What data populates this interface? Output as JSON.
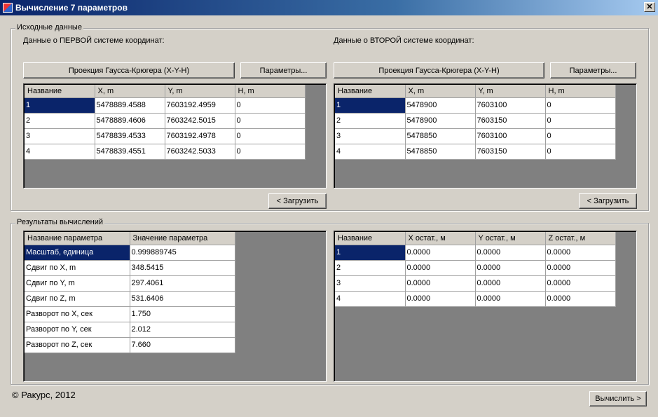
{
  "window": {
    "title": "Вычисление 7 параметров",
    "close": "✕"
  },
  "source": {
    "group_label": "Исходные данные",
    "first": {
      "label": "Данные о ПЕРВОЙ системе координат:",
      "projection_button": "Проекция Гаусса-Крюгера (X-Y-H)",
      "params_button": "Параметры...",
      "load_button": "< Загрузить",
      "columns": [
        "Название",
        "X, m",
        "Y, m",
        "H, m"
      ],
      "rows": [
        [
          "1",
          "5478889.4588",
          "7603192.4959",
          "0"
        ],
        [
          "2",
          "5478889.4606",
          "7603242.5015",
          "0"
        ],
        [
          "3",
          "5478839.4533",
          "7603192.4978",
          "0"
        ],
        [
          "4",
          "5478839.4551",
          "7603242.5033",
          "0"
        ]
      ]
    },
    "second": {
      "label": "Данные о ВТОРОЙ системе координат:",
      "projection_button": "Проекция Гаусса-Крюгера (X-Y-H)",
      "params_button": "Параметры...",
      "load_button": "< Загрузить",
      "columns": [
        "Название",
        "X, m",
        "Y, m",
        "H, m"
      ],
      "rows": [
        [
          "1",
          "5478900",
          "7603100",
          "0"
        ],
        [
          "2",
          "5478900",
          "7603150",
          "0"
        ],
        [
          "3",
          "5478850",
          "7603100",
          "0"
        ],
        [
          "4",
          "5478850",
          "7603150",
          "0"
        ]
      ]
    }
  },
  "results": {
    "group_label": "Результаты вычислений",
    "params": {
      "columns": [
        "Название параметра",
        "Значение параметра"
      ],
      "rows": [
        [
          "Масштаб, единица",
          "0.999889745"
        ],
        [
          "Сдвиг по X, m",
          "348.5415"
        ],
        [
          "Сдвиг по Y, m",
          "297.4061"
        ],
        [
          "Сдвиг по Z, m",
          "531.6406"
        ],
        [
          "Разворот по X, сек",
          "1.750"
        ],
        [
          "Разворот по Y, сек",
          "2.012"
        ],
        [
          "Разворот по Z, сек",
          "7.660"
        ]
      ]
    },
    "residuals": {
      "columns": [
        "Название",
        "X остат., м",
        "Y остат., м",
        "Z остат., м"
      ],
      "rows": [
        [
          "1",
          "0.0000",
          "0.0000",
          "0.0000"
        ],
        [
          "2",
          "0.0000",
          "0.0000",
          "0.0000"
        ],
        [
          "3",
          "0.0000",
          "0.0000",
          "0.0000"
        ],
        [
          "4",
          "0.0000",
          "0.0000",
          "0.0000"
        ]
      ]
    }
  },
  "footer": {
    "copyright": "© Ракурс, 2012",
    "calculate_button": "Вычислить >"
  }
}
